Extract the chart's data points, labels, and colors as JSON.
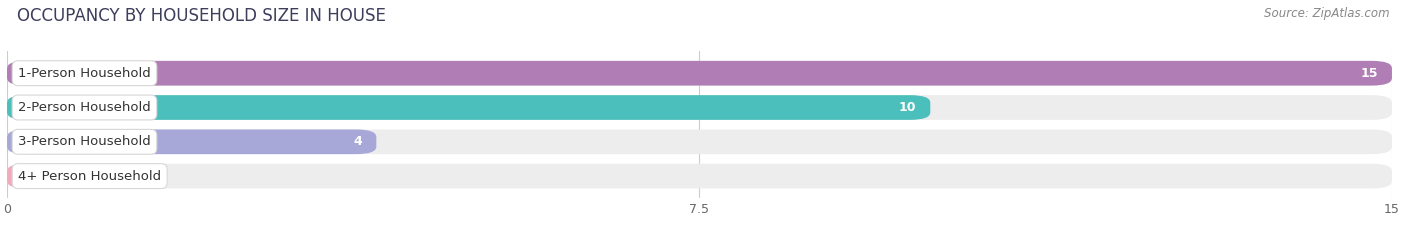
{
  "title": "OCCUPANCY BY HOUSEHOLD SIZE IN HOUSE",
  "source": "Source: ZipAtlas.com",
  "categories": [
    "1-Person Household",
    "2-Person Household",
    "3-Person Household",
    "4+ Person Household"
  ],
  "values": [
    15,
    10,
    4,
    0
  ],
  "bar_colors": [
    "#b07db5",
    "#4bbfbc",
    "#a8a8d8",
    "#f4a8bc"
  ],
  "bar_bg_color": "#ededee",
  "xlim": [
    0,
    15
  ],
  "xticks": [
    0,
    7.5,
    15
  ],
  "title_fontsize": 12,
  "label_fontsize": 9.5,
  "value_fontsize": 9,
  "source_fontsize": 8.5,
  "background_color": "#ffffff"
}
